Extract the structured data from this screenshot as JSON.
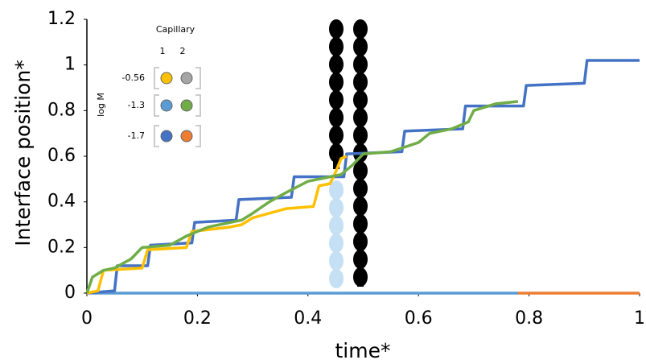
{
  "chart_data": {
    "type": "line",
    "xlabel": "time*",
    "ylabel": "Interface position*",
    "xlim": [
      0,
      1
    ],
    "xticks": [
      0,
      0.2,
      0.4,
      0.6,
      0.8,
      1
    ],
    "ylim": [
      0,
      1.2
    ],
    "yticks": [
      0,
      0.2,
      0.4,
      0.6,
      0.8,
      1,
      1.2
    ],
    "legend": {
      "title": "Capillary",
      "columns": [
        "1",
        "2"
      ],
      "row_title": "log M",
      "rows": [
        "-0.56",
        "-1.3",
        "-1.7"
      ],
      "colors": [
        [
          "#ffc000",
          "#a5a5a5"
        ],
        [
          "#5b9bd5",
          "#70ad47"
        ],
        [
          "#4472c4",
          "#ed7d31"
        ]
      ]
    },
    "series": [
      {
        "color": "#5b9bd5",
        "x": [
          0,
          0.78
        ],
        "values": [
          0,
          0
        ]
      },
      {
        "color": "#ed7d31",
        "x": [
          0.78,
          1
        ],
        "values": [
          0,
          0
        ]
      },
      {
        "color": "#4472c4",
        "x": [
          0,
          0.05,
          0.055,
          0.11,
          0.115,
          0.19,
          0.195,
          0.27,
          0.275,
          0.37,
          0.375,
          0.465,
          0.47,
          0.57,
          0.575,
          0.68,
          0.685,
          0.79,
          0.795,
          0.9,
          0.905,
          1
        ],
        "values": [
          0,
          0.01,
          0.12,
          0.12,
          0.21,
          0.22,
          0.31,
          0.32,
          0.41,
          0.42,
          0.51,
          0.51,
          0.61,
          0.62,
          0.71,
          0.72,
          0.82,
          0.82,
          0.91,
          0.92,
          1.02,
          1.02
        ]
      },
      {
        "color": "#ffc000",
        "x": [
          0,
          0.02,
          0.03,
          0.1,
          0.11,
          0.18,
          0.19,
          0.26,
          0.28,
          0.3,
          0.36,
          0.41,
          0.42,
          0.44,
          0.45,
          0.46,
          0.47
        ],
        "values": [
          0,
          0.01,
          0.1,
          0.11,
          0.19,
          0.2,
          0.27,
          0.29,
          0.3,
          0.33,
          0.37,
          0.38,
          0.47,
          0.48,
          0.53,
          0.59,
          0.6
        ]
      },
      {
        "color": "#70ad47",
        "x": [
          0,
          0.01,
          0.03,
          0.05,
          0.08,
          0.1,
          0.15,
          0.18,
          0.22,
          0.26,
          0.28,
          0.3,
          0.33,
          0.36,
          0.4,
          0.44,
          0.46,
          0.48,
          0.5,
          0.55,
          0.6,
          0.62,
          0.66,
          0.69,
          0.7,
          0.74,
          0.78
        ],
        "values": [
          0,
          0.07,
          0.1,
          0.11,
          0.15,
          0.2,
          0.21,
          0.25,
          0.29,
          0.31,
          0.32,
          0.35,
          0.4,
          0.44,
          0.49,
          0.51,
          0.52,
          0.56,
          0.61,
          0.62,
          0.66,
          0.7,
          0.72,
          0.75,
          0.8,
          0.83,
          0.84
        ]
      }
    ]
  }
}
